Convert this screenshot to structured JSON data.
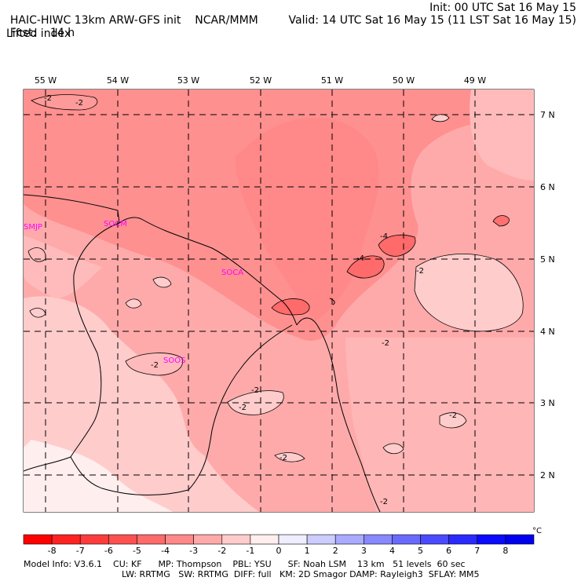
{
  "header": {
    "model": "HAIC-HIWC 13km ARW-GFS init",
    "org": "NCAR/MMM",
    "fcst_label": "Fcst:",
    "fcst_value": "14 h",
    "init": "Init: 00 UTC Sat 16 May 15",
    "valid": "Valid: 14 UTC Sat 16 May 15 (11 LST Sat 16 May 15)",
    "variable": "Lifted index"
  },
  "map": {
    "lon_labels": [
      "55 W",
      "54 W",
      "53 W",
      "52 W",
      "51 W",
      "50 W",
      "49 W"
    ],
    "lat_labels": [
      "7 N",
      "6 N",
      "5 N",
      "4 N",
      "3 N",
      "2 N"
    ],
    "stations": [
      "SMJP",
      "SOCM",
      "SOCA",
      "SOOS"
    ],
    "contour_value_labels": [
      "-2",
      "-2",
      "-4",
      "-4",
      "-2",
      "-2",
      "-2",
      "-2",
      "-2",
      "-2",
      "-2",
      "-2"
    ]
  },
  "colorbar": {
    "ticks": [
      "-8",
      "-7",
      "-6",
      "-5",
      "-4",
      "-3",
      "-2",
      "-1",
      "0",
      "1",
      "2",
      "3",
      "4",
      "5",
      "6",
      "7",
      "8"
    ],
    "unit": "°C",
    "colors": [
      "#ff0000",
      "#ff2222",
      "#ff3c3c",
      "#ff5050",
      "#ff6a6a",
      "#ff8888",
      "#ffaaaa",
      "#ffcccc",
      "#ffeeee",
      "#eeeeff",
      "#ccccff",
      "#aaaaff",
      "#8888ff",
      "#6a6aff",
      "#4a4aff",
      "#2a2aff",
      "#0a0aff",
      "#0000ee"
    ]
  },
  "footer": {
    "line1": "Model Info: V3.6.1    CU: KF      MP: Thompson    PBL: YSU      SF: Noah LSM    13 km   51 levels  60 sec",
    "line2": "LW: RRTMG   SW: RRTMG  DIFF: full   KM: 2D Smagor DAMP: Rayleigh3  SFLAY: MM5"
  }
}
